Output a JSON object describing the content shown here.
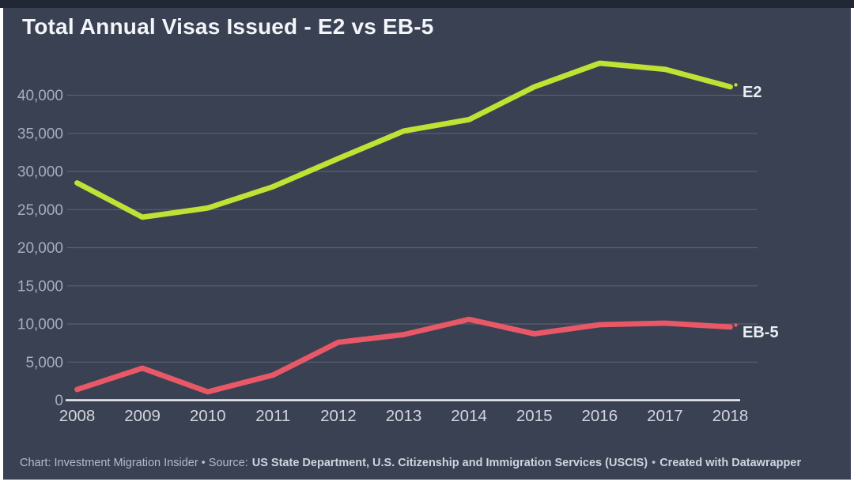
{
  "page": {
    "background": "#ffffff",
    "top_strip_color": "#222736",
    "card_color": "#3a4153"
  },
  "chart_data": {
    "type": "line",
    "title": "Total Annual Visas Issued - E2 vs EB-5",
    "x": [
      "2008",
      "2009",
      "2010",
      "2011",
      "2012",
      "2013",
      "2014",
      "2015",
      "2016",
      "2017",
      "2018"
    ],
    "yticks": [
      0,
      5000,
      10000,
      15000,
      20000,
      25000,
      30000,
      35000,
      40000
    ],
    "ylim": [
      0,
      45000
    ],
    "xlabel": "",
    "ylabel": "",
    "grid": true,
    "legend_position": "line-end-labels",
    "series": [
      {
        "name": "E2",
        "color": "#bfe234",
        "values": [
          28500,
          24000,
          25200,
          28000,
          31700,
          35300,
          36800,
          41100,
          44200,
          43400,
          41100
        ]
      },
      {
        "name": "EB-5",
        "color": "#e85866",
        "values": [
          1400,
          4200,
          1100,
          3300,
          7600,
          8600,
          10600,
          8700,
          9900,
          10100,
          9600
        ]
      }
    ]
  },
  "footer": {
    "credit": "Chart: Investment Migration Insider • Source:",
    "source": "US State Department, U.S. Citizenship and Immigration Services (USCIS)",
    "separator": "•",
    "created": "Created with Datawrapper"
  }
}
